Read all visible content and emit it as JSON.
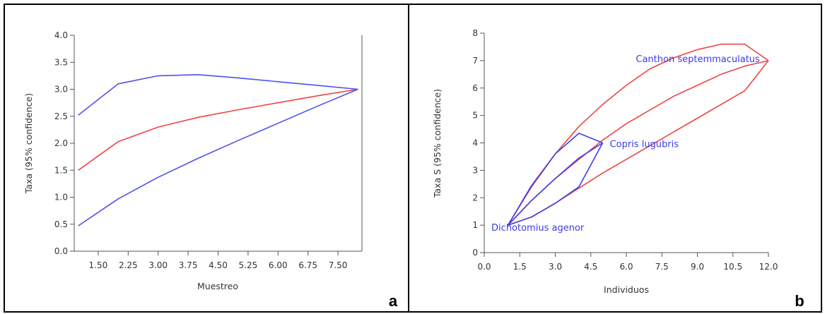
{
  "panels": [
    {
      "letter": "a",
      "chart_data": {
        "type": "line",
        "title": "",
        "xlabel": "Muestreo",
        "ylabel": "Taxa (95% confidence)",
        "xlim": [
          0.9,
          8.1
        ],
        "ylim": [
          0.0,
          4.0
        ],
        "xticks": [
          1.5,
          2.25,
          3.0,
          3.75,
          4.5,
          5.25,
          6.0,
          6.75,
          7.5
        ],
        "xtick_labels": [
          "1.50",
          "2.25",
          "3.00",
          "3.75",
          "4.50",
          "5.25",
          "6.00",
          "6.75",
          "7.50"
        ],
        "yticks": [
          0.0,
          0.5,
          1.0,
          1.5,
          2.0,
          2.5,
          3.0,
          3.5,
          4.0
        ],
        "ytick_labels": [
          "0.0",
          "0.5",
          "1.0",
          "1.5",
          "2.0",
          "2.5",
          "3.0",
          "3.5",
          "4.0"
        ],
        "grid": false,
        "series": [
          {
            "color": "#5050ee",
            "x": [
              1,
              2,
              3,
              4,
              5,
              6,
              7,
              8
            ],
            "y": [
              2.52,
              3.1,
              3.25,
              3.27,
              3.21,
              3.14,
              3.07,
              3.0
            ]
          },
          {
            "color": "#ee4444",
            "x": [
              1,
              2,
              3,
              4,
              5,
              6,
              7,
              8
            ],
            "y": [
              1.5,
              2.03,
              2.3,
              2.48,
              2.62,
              2.75,
              2.88,
              3.0
            ]
          },
          {
            "color": "#5050ee",
            "x": [
              1,
              2,
              3,
              4,
              5,
              6,
              7,
              8
            ],
            "y": [
              0.47,
              0.97,
              1.37,
              1.72,
              2.05,
              2.37,
              2.69,
              3.0
            ]
          }
        ]
      }
    },
    {
      "letter": "b",
      "chart_data": {
        "type": "line",
        "title": "",
        "xlabel": "Individuos",
        "ylabel": "Taxa S (95% confidence)",
        "xlim": [
          0.0,
          12.0
        ],
        "ylim": [
          0,
          8
        ],
        "xticks": [
          0.0,
          1.5,
          3.0,
          4.5,
          6.0,
          7.5,
          9.0,
          10.5,
          12.0
        ],
        "xtick_labels": [
          "0.0",
          "1.5",
          "3.0",
          "4.5",
          "6.0",
          "7.5",
          "9.0",
          "10.5",
          "12.0"
        ],
        "yticks": [
          0,
          1,
          2,
          3,
          4,
          5,
          6,
          7,
          8
        ],
        "ytick_labels": [
          "0",
          "1",
          "2",
          "3",
          "4",
          "5",
          "6",
          "7",
          "8"
        ],
        "grid": false,
        "series": [
          {
            "color": "#ee4444",
            "x": [
              1,
              2,
              3,
              4,
              5,
              6,
              7,
              8,
              9,
              10,
              11,
              12
            ],
            "y": [
              1.0,
              2.4,
              3.6,
              4.6,
              5.4,
              6.1,
              6.7,
              7.1,
              7.4,
              7.6,
              7.6,
              7.0
            ]
          },
          {
            "color": "#ee4444",
            "x": [
              1,
              2,
              3,
              4,
              5,
              6,
              7,
              8,
              9,
              10,
              11,
              12
            ],
            "y": [
              1.0,
              1.9,
              2.7,
              3.4,
              4.1,
              4.7,
              5.2,
              5.7,
              6.1,
              6.5,
              6.8,
              7.0
            ]
          },
          {
            "color": "#ee4444",
            "x": [
              1,
              2,
              3,
              4,
              5,
              6,
              7,
              8,
              9,
              10,
              11,
              12
            ],
            "y": [
              1.0,
              1.3,
              1.8,
              2.35,
              2.9,
              3.4,
              3.9,
              4.4,
              4.9,
              5.4,
              5.9,
              7.0
            ]
          },
          {
            "color": "#4040e6",
            "x": [
              1,
              2,
              3,
              4,
              5
            ],
            "y": [
              1.0,
              2.45,
              3.6,
              4.35,
              4.0
            ]
          },
          {
            "color": "#4040e6",
            "x": [
              1,
              2,
              3,
              4,
              5
            ],
            "y": [
              1.0,
              1.9,
              2.7,
              3.45,
              4.0
            ]
          },
          {
            "color": "#4040e6",
            "x": [
              1,
              2,
              3,
              4,
              5
            ],
            "y": [
              1.0,
              1.3,
              1.8,
              2.4,
              4.0
            ]
          }
        ],
        "annotations": [
          {
            "text": "Canthon septemmaculatus",
            "x": 6.4,
            "y": 6.95,
            "color": "#3a3aea"
          },
          {
            "text": "Copris lugubris",
            "x": 5.3,
            "y": 3.85,
            "color": "#3a3aea"
          },
          {
            "text": "Dichotomius agenor",
            "x": 0.3,
            "y": 0.8,
            "color": "#3a3aea"
          }
        ]
      }
    }
  ]
}
